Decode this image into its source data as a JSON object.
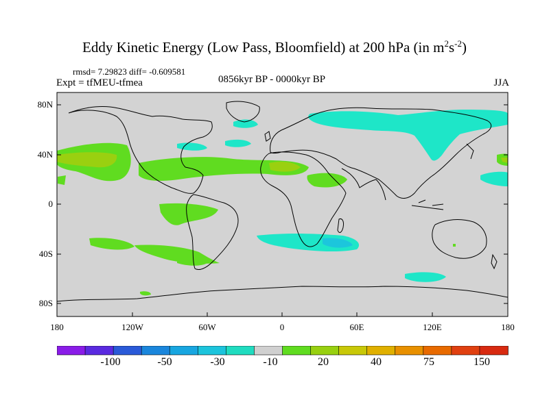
{
  "title": {
    "text": "Eddy Kinetic Energy (Low Pass, Bloomfield) at 200 hPa (in m",
    "exp1": "2",
    "mid": "s",
    "exp2": "-2",
    "close": ")"
  },
  "stats": "rmsd= 7.29823 diff= -0.609581",
  "expt": "Expt = tfMEU-tfmea",
  "period": "0856kyr BP - 0000kyr BP",
  "season": "JJA",
  "lat_labels": [
    "80N",
    "40N",
    "0",
    "40S",
    "80S"
  ],
  "lon_labels": [
    "180",
    "120W",
    "60W",
    "0",
    "60E",
    "120E",
    "180"
  ],
  "colorbar": {
    "colors": [
      "#8a1ce8",
      "#5a2ae0",
      "#2a5ad8",
      "#1a86dc",
      "#18a6e0",
      "#1cc4dc",
      "#20dcc0",
      "#d0d0d0",
      "#60dc20",
      "#98d010",
      "#c8c808",
      "#e0b000",
      "#e89000",
      "#e86a00",
      "#e04010",
      "#d82a10"
    ],
    "labels": [
      "-100",
      "-50",
      "-30",
      "-10",
      "20",
      "40",
      "75",
      "150"
    ]
  },
  "palette": {
    "ocean_land": "#d3d3d3",
    "teal": "#1ee6c8",
    "green": "#60dc20",
    "yellow_green": "#9ad010",
    "deep_teal": "#1cc6dc"
  }
}
